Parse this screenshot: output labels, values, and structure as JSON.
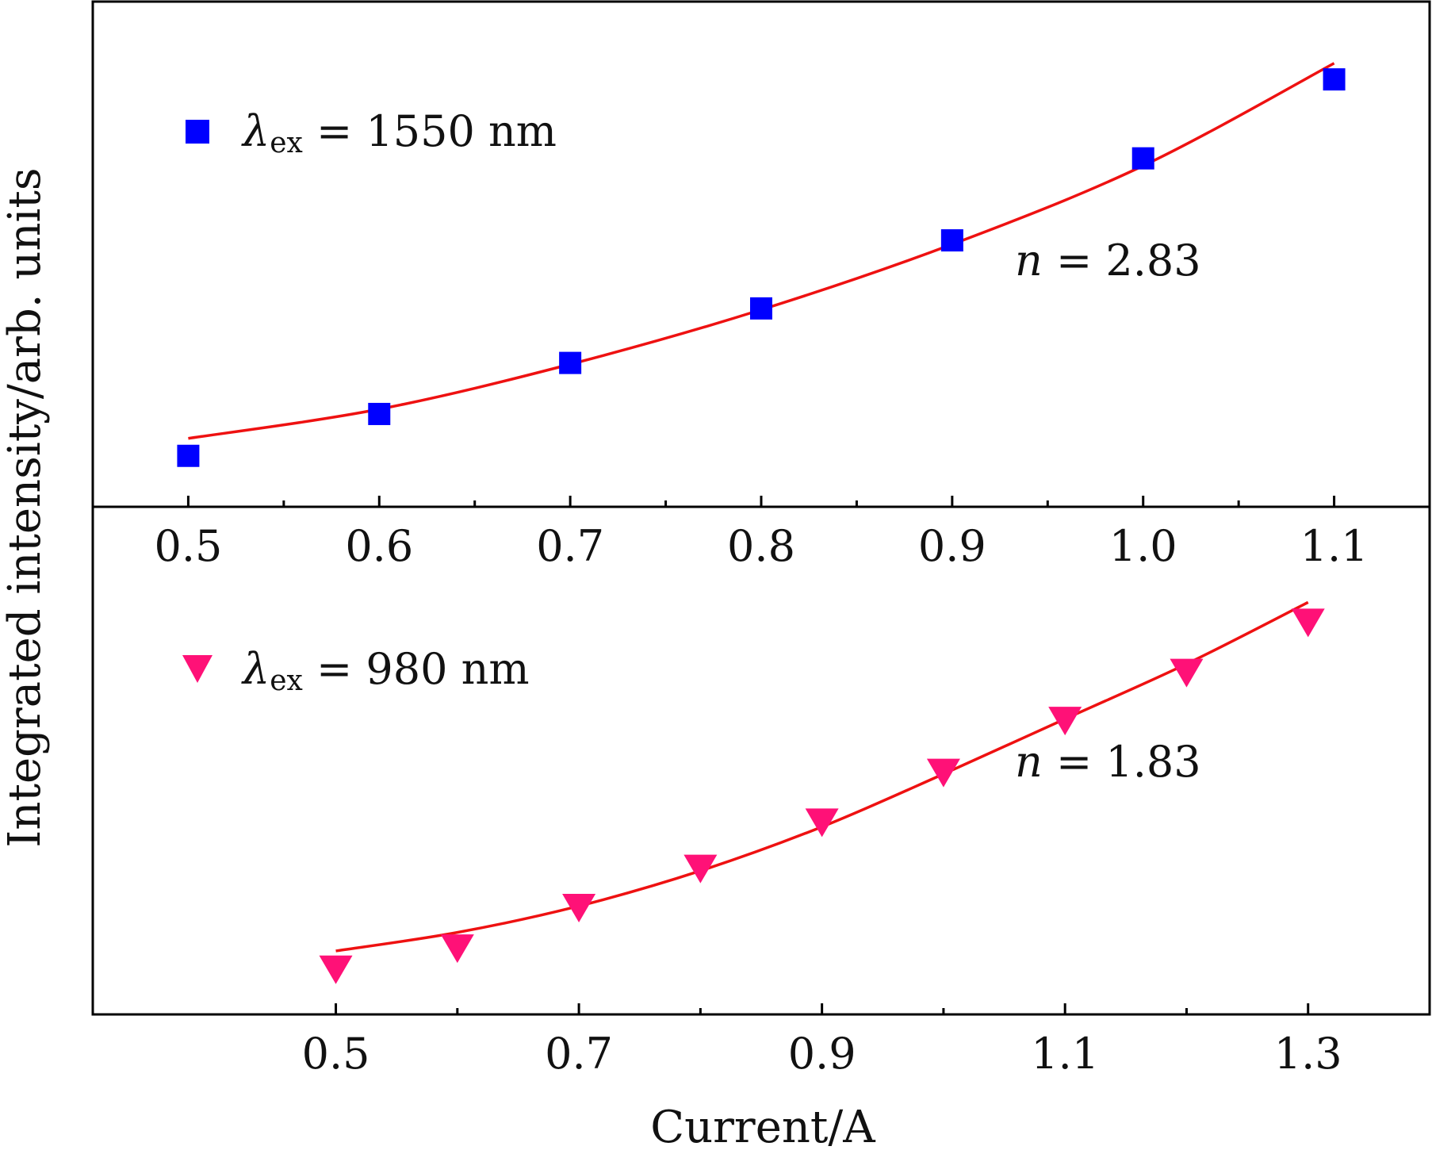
{
  "ylabel": "Integrated intensity/arb. units",
  "xlabel": "Current/A",
  "chart_data": [
    {
      "type": "scatter",
      "panel": "top",
      "xlim": [
        0.45,
        1.15
      ],
      "ylim": [
        0,
        1
      ],
      "xticks": [
        0.5,
        0.6,
        0.7,
        0.8,
        0.9,
        1.0,
        1.1
      ],
      "xtick_labels": [
        "0.5",
        "0.6",
        "0.7",
        "0.8",
        "0.9",
        "1.0",
        "1.1"
      ],
      "legend": {
        "symbol": "λ",
        "subscript": "ex",
        "text": " = 1550 nm",
        "position": "top-left"
      },
      "annotation": {
        "var": "n",
        "text": " = 2.83"
      },
      "series": [
        {
          "name": "λex = 1550 nm",
          "marker": "square",
          "color": "#0000ff",
          "x": [
            0.5,
            0.6,
            0.7,
            0.8,
            0.9,
            1.0,
            1.1
          ],
          "y": [
            0.055,
            0.151,
            0.268,
            0.393,
            0.549,
            0.737,
            0.918
          ]
        }
      ],
      "fit": {
        "color": "#ee1111",
        "x": [
          0.5,
          0.6,
          0.7,
          0.8,
          0.9,
          1.0,
          1.1
        ],
        "y": [
          0.095,
          0.162,
          0.265,
          0.39,
          0.54,
          0.72,
          0.955
        ]
      }
    },
    {
      "type": "scatter",
      "panel": "bottom",
      "xlim": [
        0.3,
        1.4
      ],
      "ylim": [
        0,
        1
      ],
      "xticks": [
        0.5,
        0.7,
        0.9,
        1.1,
        1.3
      ],
      "xtick_labels": [
        "0.5",
        "0.7",
        "0.9",
        "1.1",
        "1.3"
      ],
      "minor_xticks": [
        0.6,
        0.8,
        1.0,
        1.2
      ],
      "legend": {
        "symbol": "λ",
        "subscript": "ex",
        "text": " = 980 nm",
        "position": "top-left"
      },
      "annotation": {
        "var": "n",
        "text": " = 1.83"
      },
      "series": [
        {
          "name": "λex = 980 nm",
          "marker": "triangle-down",
          "color": "#ff1177",
          "x": [
            0.5,
            0.6,
            0.7,
            0.8,
            0.9,
            1.0,
            1.1,
            1.2,
            1.3
          ],
          "y": [
            0.087,
            0.135,
            0.227,
            0.316,
            0.421,
            0.534,
            0.652,
            0.761,
            0.875
          ]
        }
      ],
      "fit": {
        "color": "#ee1111",
        "x": [
          0.5,
          0.6,
          0.7,
          0.8,
          0.9,
          1.0,
          1.1,
          1.2,
          1.3
        ],
        "y": [
          0.128,
          0.17,
          0.23,
          0.31,
          0.41,
          0.53,
          0.655,
          0.78,
          0.92
        ]
      }
    }
  ]
}
